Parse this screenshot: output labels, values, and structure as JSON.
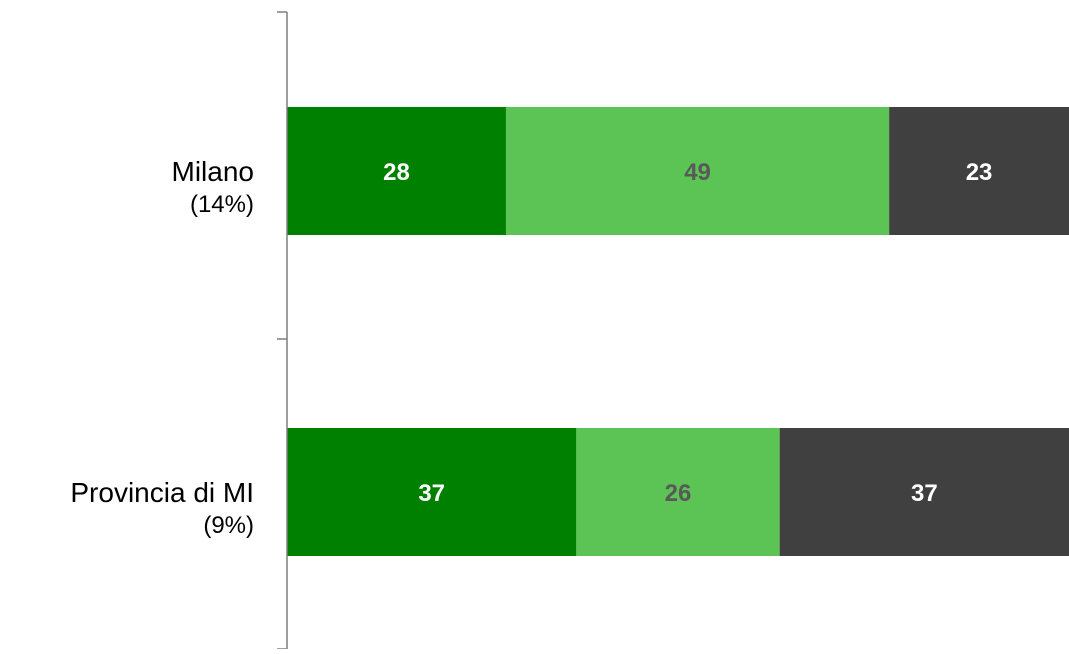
{
  "chart_data": {
    "type": "bar",
    "orientation": "horizontal",
    "stacked": true,
    "categories": [
      {
        "name": "Milano",
        "sub": "(14%)"
      },
      {
        "name": "Provincia di MI",
        "sub": "(9%)"
      }
    ],
    "series": [
      {
        "values": [
          28,
          37
        ],
        "color": "#008000",
        "label_color": "#ffffff"
      },
      {
        "values": [
          49,
          26
        ],
        "color": "#5bc455",
        "label_color": "#595959"
      },
      {
        "values": [
          23,
          37
        ],
        "color": "#404040",
        "label_color": "#ffffff"
      }
    ],
    "xlim": [
      0,
      100
    ],
    "grid": false,
    "legend": "none",
    "axis_color": "#7f7f7f"
  }
}
